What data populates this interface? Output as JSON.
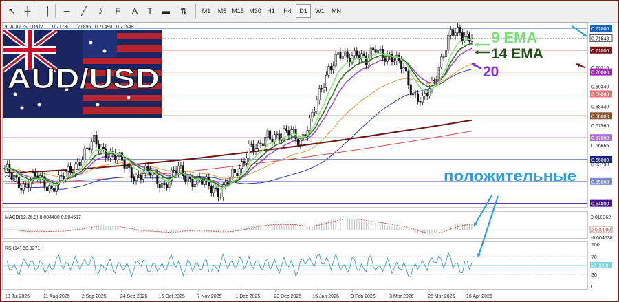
{
  "toolbar": {
    "tool_icons": [
      "cursor-icon",
      "crosshair-icon",
      "vertical-line-icon",
      "horizontal-line-icon",
      "trend-line-icon",
      "channel-icon",
      "fibonacci-icon",
      "text-icon",
      "label-icon",
      "shape-icon",
      "arrows-icon"
    ],
    "timeframes": [
      "M1",
      "M5",
      "M15",
      "M30",
      "H1",
      "H4",
      "D1",
      "W1",
      "MN"
    ],
    "active_timeframe": "D1"
  },
  "chart_data": {
    "type": "candlestick",
    "header": {
      "symbol": "AUDUSD,Daily",
      "open": "0.71780",
      "high": "0.71896",
      "low": "0.71490",
      "close": "0.71548"
    },
    "banner_text": "AUD/USD",
    "price_axis_labels": [
      "0.72000",
      "0.71548",
      "0.71000",
      "0.70215",
      "0.70000",
      "0.69340",
      "0.69000",
      "0.68440",
      "0.68000",
      "0.67565",
      "0.67000",
      "0.66665",
      "0.66000",
      "0.65790",
      "0.65000",
      "0.64000"
    ],
    "price_range": [
      0.638,
      0.7225
    ],
    "current_price": 0.71548,
    "level_lines": [
      {
        "price": 0.72,
        "color": "#1565c0"
      },
      {
        "price": 0.71,
        "color": "#7a1a1a"
      },
      {
        "price": 0.7,
        "color": "#9c27b0"
      },
      {
        "price": 0.69,
        "color": "#e57373"
      },
      {
        "price": 0.68,
        "color": "#8d4f2a"
      },
      {
        "price": 0.67,
        "color": "#b26fd8"
      },
      {
        "price": 0.66,
        "color": "#1a237e"
      },
      {
        "price": 0.65,
        "color": "#7986cb"
      },
      {
        "price": 0.64,
        "color": "#4a148c"
      }
    ],
    "date_labels": [
      "18 Jul 2025",
      "11 Aug 2025",
      "2 Sep 2025",
      "24 Sep 2025",
      "16 Oct 2025",
      "7 Nov 2025",
      "1 Dec 2025",
      "23 Dec 2025",
      "16 Jan 2026",
      "9 Feb 2026",
      "3 Mar 2026",
      "25 Mar 2026",
      "16 Apr 2026"
    ],
    "bar_count": 200,
    "price_keypoints": [
      [
        0,
        0.655
      ],
      [
        8,
        0.648
      ],
      [
        14,
        0.652
      ],
      [
        20,
        0.647
      ],
      [
        26,
        0.653
      ],
      [
        32,
        0.66
      ],
      [
        38,
        0.668
      ],
      [
        44,
        0.663
      ],
      [
        50,
        0.659
      ],
      [
        56,
        0.652
      ],
      [
        62,
        0.654
      ],
      [
        68,
        0.648
      ],
      [
        74,
        0.656
      ],
      [
        80,
        0.65
      ],
      [
        86,
        0.649
      ],
      [
        92,
        0.645
      ],
      [
        96,
        0.651
      ],
      [
        100,
        0.656
      ],
      [
        104,
        0.666
      ],
      [
        108,
        0.664
      ],
      [
        112,
        0.672
      ],
      [
        118,
        0.67
      ],
      [
        122,
        0.673
      ],
      [
        126,
        0.669
      ],
      [
        130,
        0.676
      ],
      [
        134,
        0.69
      ],
      [
        138,
        0.702
      ],
      [
        142,
        0.707
      ],
      [
        146,
        0.706
      ],
      [
        150,
        0.71
      ],
      [
        154,
        0.704
      ],
      [
        158,
        0.711
      ],
      [
        162,
        0.708
      ],
      [
        166,
        0.705
      ],
      [
        170,
        0.702
      ],
      [
        174,
        0.69
      ],
      [
        178,
        0.686
      ],
      [
        182,
        0.694
      ],
      [
        186,
        0.706
      ],
      [
        190,
        0.717
      ],
      [
        194,
        0.718
      ],
      [
        199,
        0.7155
      ]
    ],
    "ema_labels": [
      {
        "text": "9 EMA",
        "color": "#7ede78"
      },
      {
        "text": "14 EMA",
        "color": "#1f4f16"
      },
      {
        "text": "20",
        "color": "#8a2be2"
      }
    ],
    "annotation_text": "положительные",
    "annotation_color": "#2e9fd8",
    "macd": {
      "label": "MACD(12,26,9) 0.004480 0.004517",
      "scale_labels": [
        "0.010362",
        "0.000000",
        "-0.004538"
      ]
    },
    "rsi": {
      "label": "RSI(14) 58.3271",
      "scale_labels": [
        "100",
        "70",
        "50.0000",
        "30",
        "0"
      ],
      "level": 50
    }
  }
}
